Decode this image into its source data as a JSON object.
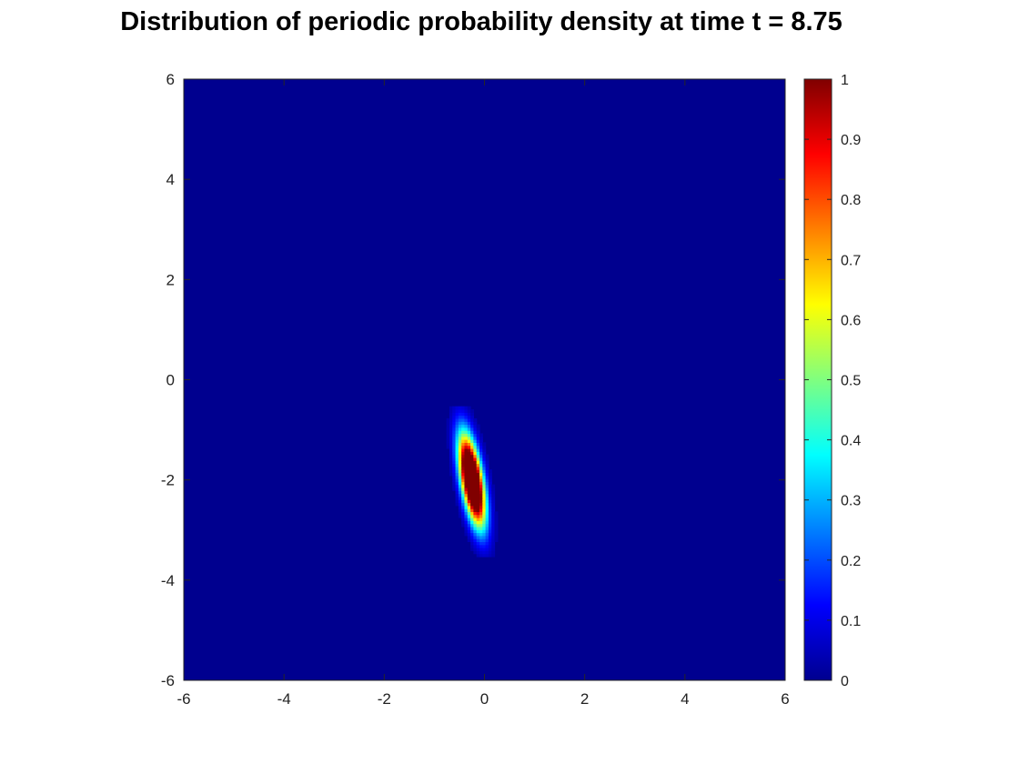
{
  "chart_data": {
    "type": "heatmap",
    "title": "Distribution of periodic probability density at time t = 8.75",
    "xlabel": "",
    "ylabel": "",
    "xlim": [
      -6,
      6
    ],
    "ylim": [
      -6,
      6
    ],
    "x_ticks": [
      "-6",
      "-4",
      "-2",
      "0",
      "2",
      "4",
      "6"
    ],
    "y_ticks": [
      "6",
      "4",
      "2",
      "0",
      "-2",
      "-4",
      "-6"
    ],
    "x_tick_values": [
      -6,
      -4,
      -2,
      0,
      2,
      4,
      6
    ],
    "y_tick_values": [
      6,
      4,
      2,
      0,
      -2,
      -4,
      -6
    ],
    "colormap": "jet",
    "background_color": "#00008f",
    "colorbar": {
      "range": [
        0,
        1
      ],
      "ticks": [
        "1",
        "0.9",
        "0.8",
        "0.7",
        "0.6",
        "0.5",
        "0.4",
        "0.3",
        "0.2",
        "0.1",
        "0"
      ],
      "tick_values": [
        1,
        0.9,
        0.8,
        0.7,
        0.6,
        0.5,
        0.4,
        0.3,
        0.2,
        0.1,
        0
      ]
    },
    "density_peak": {
      "center_x": -0.25,
      "center_y": -2.0,
      "spread_along_axis": 0.6,
      "spread_across_axis": 0.14,
      "orientation_deg": 100,
      "max_value": 1.0
    },
    "grid": false
  }
}
